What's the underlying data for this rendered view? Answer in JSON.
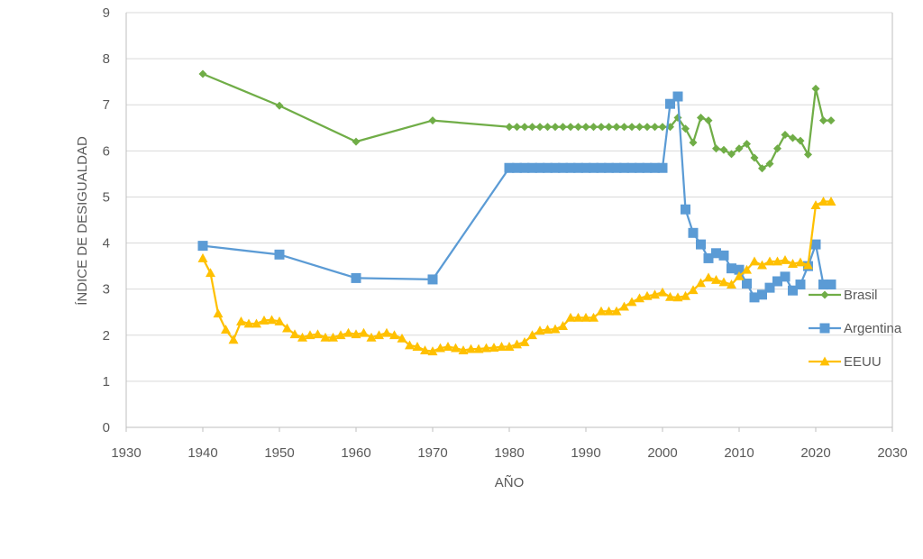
{
  "chart_data": {
    "type": "line",
    "xlabel": "AÑO",
    "ylabel": "ÍNDICE DE DESIGUALDAD",
    "xlim": [
      1930,
      2030
    ],
    "ylim": [
      0,
      9
    ],
    "xticks": [
      1930,
      1940,
      1950,
      1960,
      1970,
      1980,
      1990,
      2000,
      2010,
      2020,
      2030
    ],
    "yticks": [
      0,
      1,
      2,
      3,
      4,
      5,
      6,
      7,
      8,
      9
    ],
    "grid": "horizontal",
    "legend_position": "right",
    "series": [
      {
        "name": "Brasil",
        "color": "#70ad47",
        "marker": "diamond",
        "points": [
          [
            1940,
            7.67
          ],
          [
            1950,
            6.98
          ],
          [
            1960,
            6.2
          ],
          [
            1970,
            6.66
          ],
          [
            1980,
            6.52
          ],
          [
            1981,
            6.52
          ],
          [
            1982,
            6.52
          ],
          [
            1983,
            6.52
          ],
          [
            1984,
            6.52
          ],
          [
            1985,
            6.52
          ],
          [
            1986,
            6.52
          ],
          [
            1987,
            6.52
          ],
          [
            1988,
            6.52
          ],
          [
            1989,
            6.52
          ],
          [
            1990,
            6.52
          ],
          [
            1991,
            6.52
          ],
          [
            1992,
            6.52
          ],
          [
            1993,
            6.52
          ],
          [
            1994,
            6.52
          ],
          [
            1995,
            6.52
          ],
          [
            1996,
            6.52
          ],
          [
            1997,
            6.52
          ],
          [
            1998,
            6.52
          ],
          [
            1999,
            6.52
          ],
          [
            2000,
            6.52
          ],
          [
            2001,
            6.52
          ],
          [
            2002,
            6.72
          ],
          [
            2003,
            6.48
          ],
          [
            2004,
            6.18
          ],
          [
            2005,
            6.72
          ],
          [
            2006,
            6.66
          ],
          [
            2007,
            6.05
          ],
          [
            2008,
            6.02
          ],
          [
            2009,
            5.93
          ],
          [
            2010,
            6.05
          ],
          [
            2011,
            6.15
          ],
          [
            2012,
            5.85
          ],
          [
            2013,
            5.62
          ],
          [
            2014,
            5.72
          ],
          [
            2015,
            6.05
          ],
          [
            2016,
            6.35
          ],
          [
            2017,
            6.28
          ],
          [
            2018,
            6.22
          ],
          [
            2019,
            5.92
          ],
          [
            2020,
            7.35
          ],
          [
            2021,
            6.66
          ],
          [
            2022,
            6.66
          ]
        ]
      },
      {
        "name": "Argentina",
        "color": "#5b9bd5",
        "marker": "square",
        "points": [
          [
            1940,
            3.94
          ],
          [
            1950,
            3.75
          ],
          [
            1960,
            3.24
          ],
          [
            1970,
            3.21
          ],
          [
            1980,
            5.63
          ],
          [
            1981,
            5.63
          ],
          [
            1982,
            5.63
          ],
          [
            1983,
            5.63
          ],
          [
            1984,
            5.63
          ],
          [
            1985,
            5.63
          ],
          [
            1986,
            5.63
          ],
          [
            1987,
            5.63
          ],
          [
            1988,
            5.63
          ],
          [
            1989,
            5.63
          ],
          [
            1990,
            5.63
          ],
          [
            1991,
            5.63
          ],
          [
            1992,
            5.63
          ],
          [
            1993,
            5.63
          ],
          [
            1994,
            5.63
          ],
          [
            1995,
            5.63
          ],
          [
            1996,
            5.63
          ],
          [
            1997,
            5.63
          ],
          [
            1998,
            5.63
          ],
          [
            1999,
            5.63
          ],
          [
            2000,
            5.63
          ],
          [
            2001,
            7.02
          ],
          [
            2002,
            7.18
          ],
          [
            2003,
            4.73
          ],
          [
            2004,
            4.22
          ],
          [
            2005,
            3.97
          ],
          [
            2006,
            3.67
          ],
          [
            2007,
            3.78
          ],
          [
            2008,
            3.73
          ],
          [
            2009,
            3.45
          ],
          [
            2010,
            3.42
          ],
          [
            2011,
            3.12
          ],
          [
            2012,
            2.82
          ],
          [
            2013,
            2.88
          ],
          [
            2014,
            3.03
          ],
          [
            2015,
            3.17
          ],
          [
            2016,
            3.27
          ],
          [
            2017,
            2.97
          ],
          [
            2018,
            3.1
          ],
          [
            2019,
            3.5
          ],
          [
            2020,
            3.97
          ],
          [
            2021,
            3.1
          ],
          [
            2022,
            3.1
          ]
        ]
      },
      {
        "name": "EEUU",
        "color": "#ffc000",
        "marker": "triangle",
        "points": [
          [
            1940,
            3.67
          ],
          [
            1941,
            3.35
          ],
          [
            1942,
            2.47
          ],
          [
            1943,
            2.12
          ],
          [
            1944,
            1.9
          ],
          [
            1945,
            2.3
          ],
          [
            1946,
            2.25
          ],
          [
            1947,
            2.25
          ],
          [
            1948,
            2.32
          ],
          [
            1949,
            2.33
          ],
          [
            1950,
            2.3
          ],
          [
            1951,
            2.15
          ],
          [
            1952,
            2.02
          ],
          [
            1953,
            1.95
          ],
          [
            1954,
            2.0
          ],
          [
            1955,
            2.02
          ],
          [
            1956,
            1.95
          ],
          [
            1957,
            1.95
          ],
          [
            1958,
            2.0
          ],
          [
            1959,
            2.05
          ],
          [
            1960,
            2.02
          ],
          [
            1961,
            2.05
          ],
          [
            1962,
            1.95
          ],
          [
            1963,
            2.0
          ],
          [
            1964,
            2.05
          ],
          [
            1965,
            2.0
          ],
          [
            1966,
            1.93
          ],
          [
            1967,
            1.78
          ],
          [
            1968,
            1.75
          ],
          [
            1969,
            1.67
          ],
          [
            1970,
            1.65
          ],
          [
            1971,
            1.72
          ],
          [
            1972,
            1.75
          ],
          [
            1973,
            1.72
          ],
          [
            1974,
            1.67
          ],
          [
            1975,
            1.7
          ],
          [
            1976,
            1.7
          ],
          [
            1977,
            1.72
          ],
          [
            1978,
            1.73
          ],
          [
            1979,
            1.75
          ],
          [
            1980,
            1.75
          ],
          [
            1981,
            1.8
          ],
          [
            1982,
            1.85
          ],
          [
            1983,
            2.0
          ],
          [
            1984,
            2.1
          ],
          [
            1985,
            2.12
          ],
          [
            1986,
            2.13
          ],
          [
            1987,
            2.2
          ],
          [
            1988,
            2.38
          ],
          [
            1989,
            2.38
          ],
          [
            1990,
            2.38
          ],
          [
            1991,
            2.38
          ],
          [
            1992,
            2.52
          ],
          [
            1993,
            2.52
          ],
          [
            1994,
            2.52
          ],
          [
            1995,
            2.62
          ],
          [
            1996,
            2.72
          ],
          [
            1997,
            2.8
          ],
          [
            1998,
            2.85
          ],
          [
            1999,
            2.88
          ],
          [
            2000,
            2.93
          ],
          [
            2001,
            2.83
          ],
          [
            2002,
            2.82
          ],
          [
            2003,
            2.85
          ],
          [
            2004,
            2.98
          ],
          [
            2005,
            3.13
          ],
          [
            2006,
            3.25
          ],
          [
            2007,
            3.2
          ],
          [
            2008,
            3.15
          ],
          [
            2009,
            3.1
          ],
          [
            2010,
            3.28
          ],
          [
            2011,
            3.42
          ],
          [
            2012,
            3.6
          ],
          [
            2013,
            3.52
          ],
          [
            2014,
            3.6
          ],
          [
            2015,
            3.6
          ],
          [
            2016,
            3.63
          ],
          [
            2017,
            3.55
          ],
          [
            2018,
            3.58
          ],
          [
            2019,
            3.52
          ],
          [
            2020,
            4.82
          ],
          [
            2021,
            4.9
          ],
          [
            2022,
            4.9
          ]
        ]
      }
    ]
  }
}
